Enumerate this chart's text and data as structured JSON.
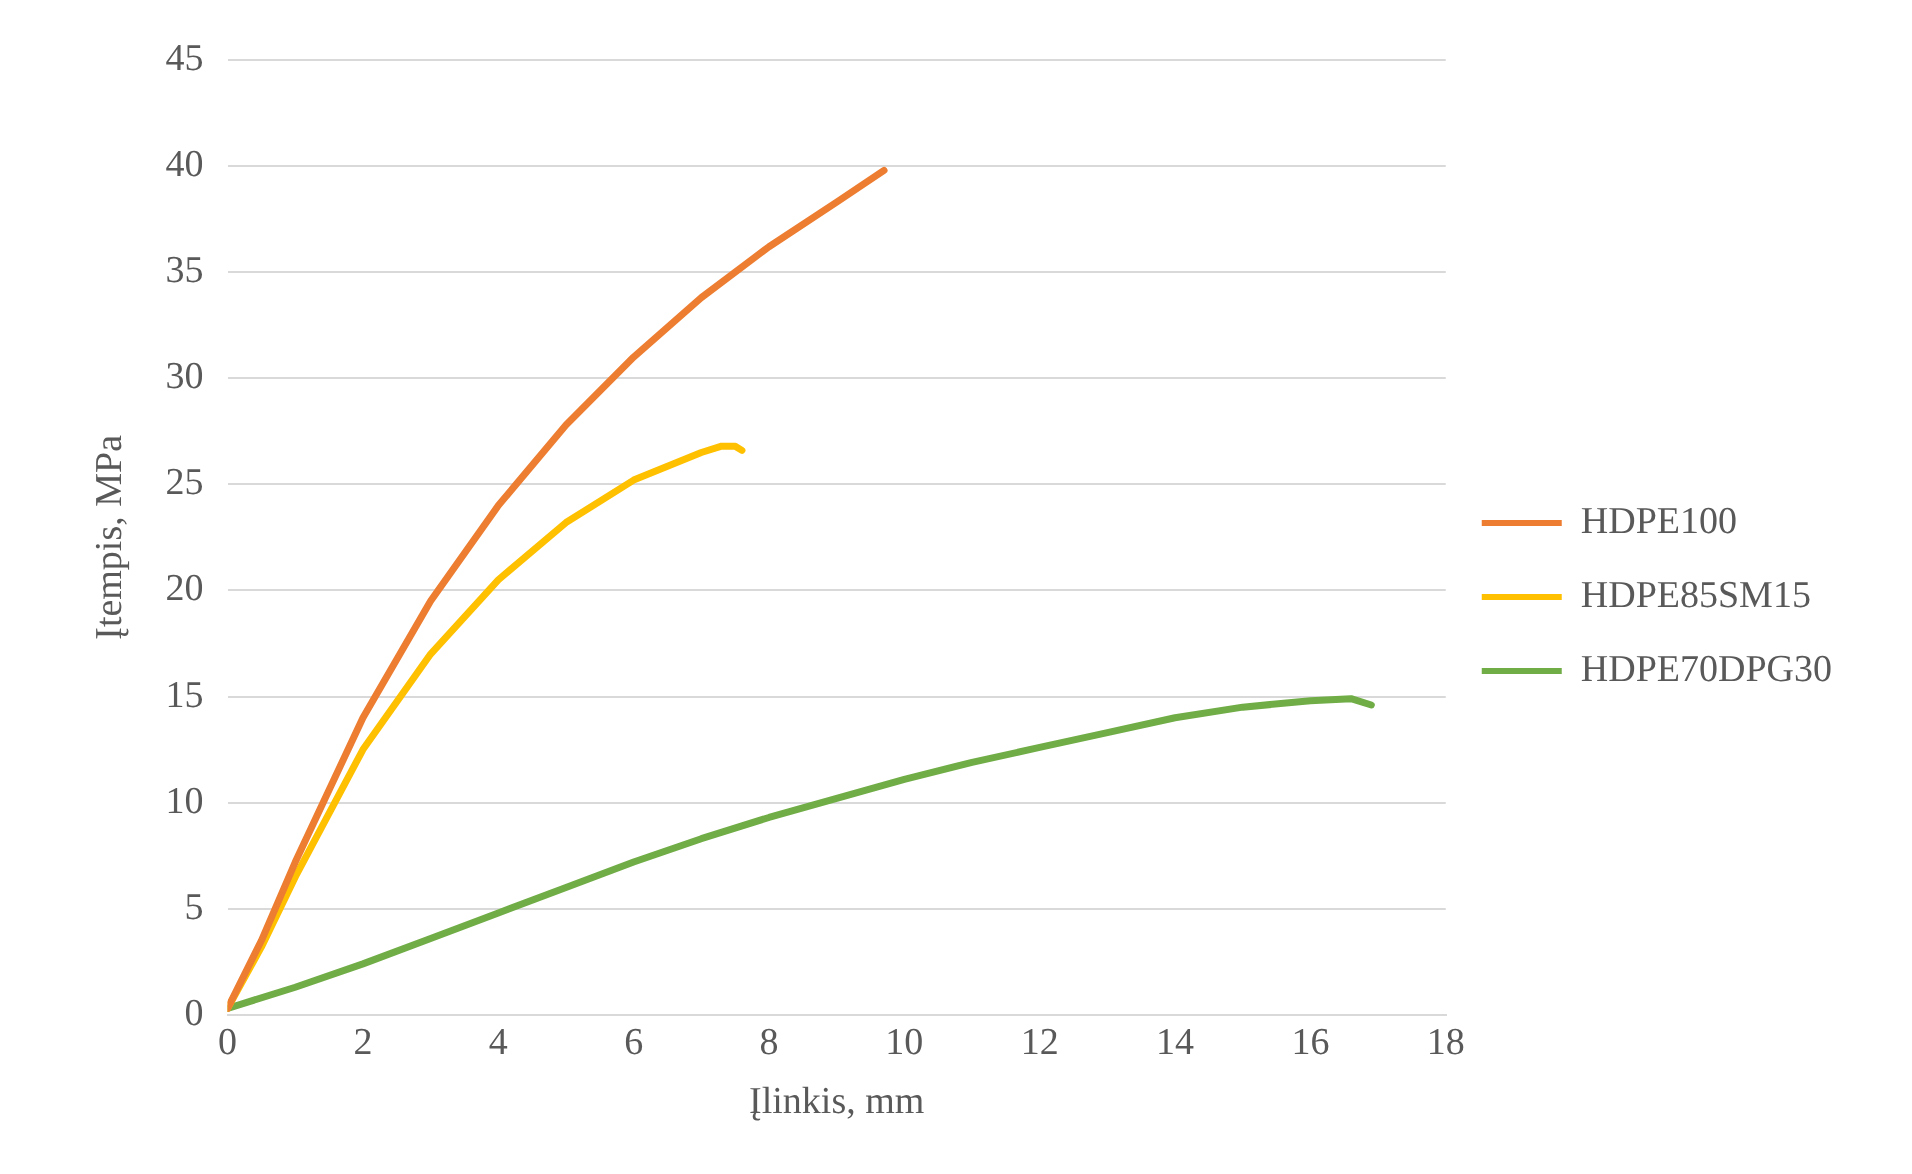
{
  "chart_data": {
    "type": "line",
    "xlabel": "Įlinkis, mm",
    "ylabel": "Įtempis, MPa",
    "xlim": [
      0,
      18
    ],
    "xticks": [
      0,
      2,
      4,
      6,
      8,
      10,
      12,
      14,
      16,
      18
    ],
    "ylim": [
      0,
      45
    ],
    "yticks": [
      0,
      5,
      10,
      15,
      20,
      25,
      30,
      35,
      40,
      45
    ],
    "grid": "y",
    "legend": "right",
    "marker": "none",
    "line_style": "solid",
    "series": [
      {
        "name": "HDPE100",
        "color": "#ed7d31",
        "x": [
          0,
          0.5,
          1,
          2,
          3,
          4,
          5,
          6,
          7,
          8,
          9,
          9.7
        ],
        "values": [
          0.3,
          3.5,
          7.2,
          14,
          19.5,
          24,
          27.8,
          31,
          33.8,
          36.2,
          38.3,
          39.8
        ]
      },
      {
        "name": "HDPE85SM15",
        "color": "#ffc000",
        "x": [
          0,
          0.5,
          1,
          2,
          3,
          4,
          5,
          6,
          7,
          7.3,
          7.5,
          7.6
        ],
        "values": [
          0.3,
          3.2,
          6.5,
          12.5,
          17,
          20.5,
          23.2,
          25.2,
          26.5,
          26.8,
          26.8,
          26.6
        ]
      },
      {
        "name": "HDPE70DPG30",
        "color": "#70ad47",
        "x": [
          0,
          1,
          2,
          3,
          4,
          5,
          6,
          7,
          8,
          9,
          10,
          11,
          12,
          13,
          14,
          15,
          16,
          16.6,
          16.9
        ],
        "values": [
          0.3,
          1.3,
          2.4,
          3.6,
          4.8,
          6,
          7.2,
          8.3,
          9.3,
          10.2,
          11.1,
          11.9,
          12.6,
          13.3,
          14,
          14.5,
          14.8,
          14.9,
          14.6
        ]
      }
    ]
  }
}
